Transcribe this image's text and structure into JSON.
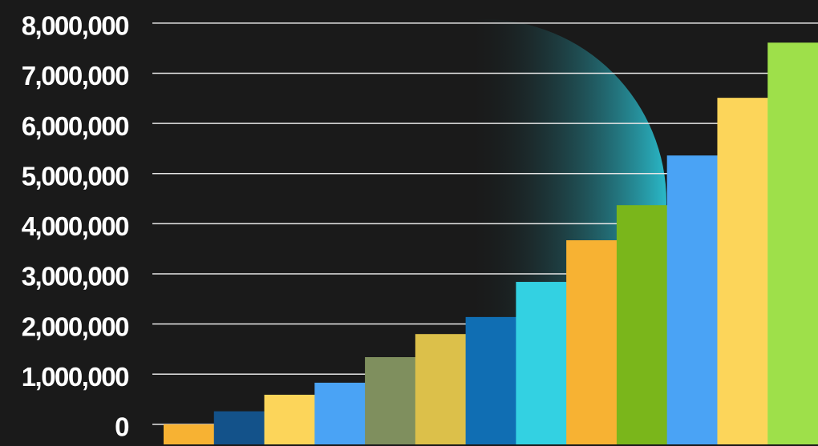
{
  "chart_data": {
    "type": "bar",
    "values": [
      0,
      260000,
      590000,
      830000,
      1340000,
      1800000,
      2140000,
      2840000,
      3670000,
      4370000,
      5360000,
      6510000,
      7610000
    ],
    "colors": [
      "#f7b233",
      "#13528a",
      "#fcd55a",
      "#4aa3f5",
      "#7f8f5e",
      "#dcc04a",
      "#106eb3",
      "#33d1e2",
      "#f7b233",
      "#7ab61b",
      "#4aa3f5",
      "#fcd55a",
      "#9ee04a"
    ],
    "ylim": [
      -400000,
      8460000
    ],
    "yticks": [
      0,
      {
        "value": 1000000,
        "label": "1,000,000"
      },
      {
        "value": 2000000,
        "label": "2,000,000"
      },
      {
        "value": 3000000,
        "label": "3,000,000"
      },
      {
        "value": 4000000,
        "label": "4,000,000"
      },
      {
        "value": 5000000,
        "label": "5,000,000"
      },
      {
        "value": 6000000,
        "label": "6,000,000"
      },
      {
        "value": 7000000,
        "label": "7,000,000"
      },
      {
        "value": 8000000,
        "label": "8,000,000"
      }
    ],
    "grid": true
  }
}
